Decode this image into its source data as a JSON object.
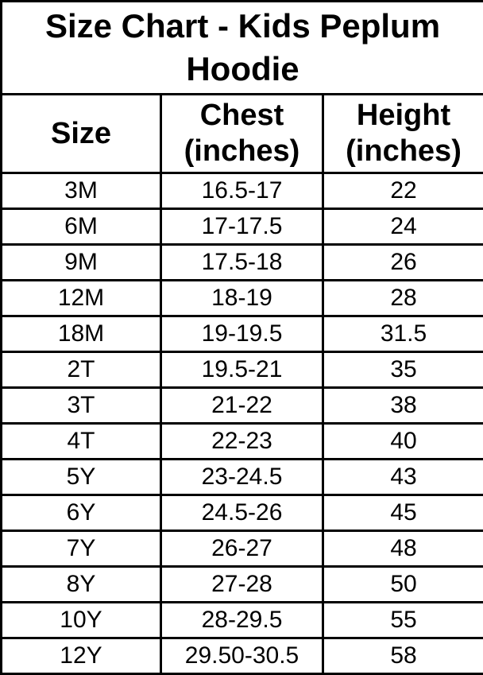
{
  "title": "Size Chart - Kids Peplum Hoodie",
  "colors": {
    "background": "#ffffff",
    "border": "#000000",
    "text": "#000000"
  },
  "chart_data": {
    "type": "table",
    "title": "Size Chart - Kids Peplum Hoodie",
    "columns": [
      "Size",
      "Chest (inches)",
      "Height (inches)"
    ],
    "rows": [
      [
        "3M",
        "16.5-17",
        "22"
      ],
      [
        "6M",
        "17-17.5",
        "24"
      ],
      [
        "9M",
        "17.5-18",
        "26"
      ],
      [
        "12M",
        "18-19",
        "28"
      ],
      [
        "18M",
        "19-19.5",
        "31.5"
      ],
      [
        "2T",
        "19.5-21",
        "35"
      ],
      [
        "3T",
        "21-22",
        "38"
      ],
      [
        "4T",
        "22-23",
        "40"
      ],
      [
        "5Y",
        "23-24.5",
        "43"
      ],
      [
        "6Y",
        "24.5-26",
        "45"
      ],
      [
        "7Y",
        "26-27",
        "48"
      ],
      [
        "8Y",
        "27-28",
        "50"
      ],
      [
        "10Y",
        "28-29.5",
        "55"
      ],
      [
        "12Y",
        "29.50-30.5",
        "58"
      ]
    ]
  }
}
